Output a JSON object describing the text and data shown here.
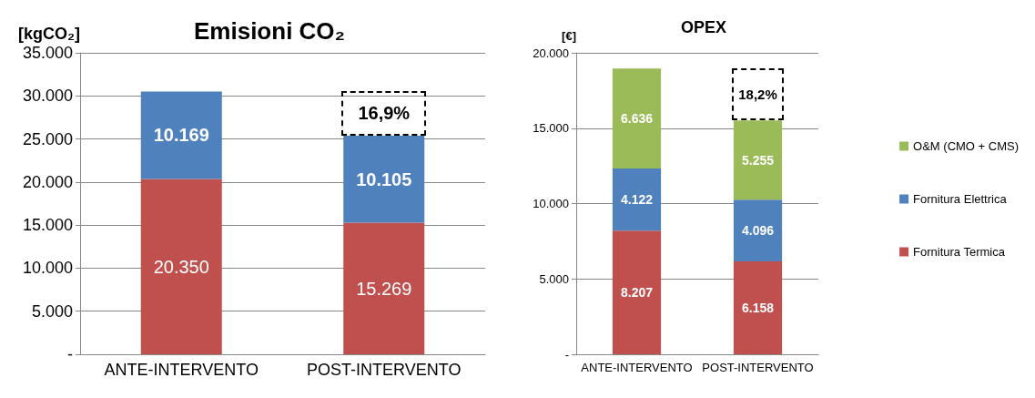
{
  "chart_data": [
    {
      "type": "bar",
      "title": "Emisioni CO₂",
      "ylabel": "[kgCO₂]",
      "categories": [
        "ANTE-INTERVENTO",
        "POST-INTERVENTO"
      ],
      "stacked": true,
      "series": [
        {
          "color": "#c0504d",
          "values": [
            20350,
            15269
          ],
          "value_labels": [
            "20.350",
            "15.269"
          ]
        },
        {
          "color": "#4f81bd",
          "values": [
            10169,
            10105
          ],
          "value_labels": [
            "10.169",
            "10.105"
          ]
        }
      ],
      "ylim": [
        0,
        35000
      ],
      "yticks": [
        {
          "value": 0,
          "label": "-"
        },
        {
          "value": 5000,
          "label": "5.000"
        },
        {
          "value": 10000,
          "label": "10.000"
        },
        {
          "value": 15000,
          "label": "15.000"
        },
        {
          "value": 20000,
          "label": "20.000"
        },
        {
          "value": 25000,
          "label": "25.000"
        },
        {
          "value": 30000,
          "label": "30.000"
        },
        {
          "value": 35000,
          "label": "35.000"
        }
      ],
      "grid": "y",
      "legend": false,
      "annotations": [
        "16,9%"
      ]
    },
    {
      "type": "bar",
      "title": "OPEX",
      "ylabel": "[€]",
      "categories": [
        "ANTE-INTERVENTO",
        "POST-INTERVENTO"
      ],
      "stacked": true,
      "series": [
        {
          "name": "Fornitura Termica",
          "color": "#c0504d",
          "values": [
            8207,
            6158
          ],
          "value_labels": [
            "8.207",
            "6.158"
          ]
        },
        {
          "name": "Fornitura Elettrica",
          "color": "#4f81bd",
          "values": [
            4122,
            4096
          ],
          "value_labels": [
            "4.122",
            "4.096"
          ]
        },
        {
          "name": "O&M (CMO + CMS)",
          "color": "#9bbb59",
          "values": [
            6636,
            5255
          ],
          "value_labels": [
            "6.636",
            "5.255"
          ]
        }
      ],
      "ylim": [
        0,
        20000
      ],
      "yticks": [
        {
          "value": 0,
          "label": "-"
        },
        {
          "value": 5000,
          "label": "5.000"
        },
        {
          "value": 10000,
          "label": "10.000"
        },
        {
          "value": 15000,
          "label": "15.000"
        },
        {
          "value": 20000,
          "label": "20.000"
        }
      ],
      "grid": "y",
      "legend": "right",
      "annotations": [
        "18,2%"
      ]
    }
  ]
}
